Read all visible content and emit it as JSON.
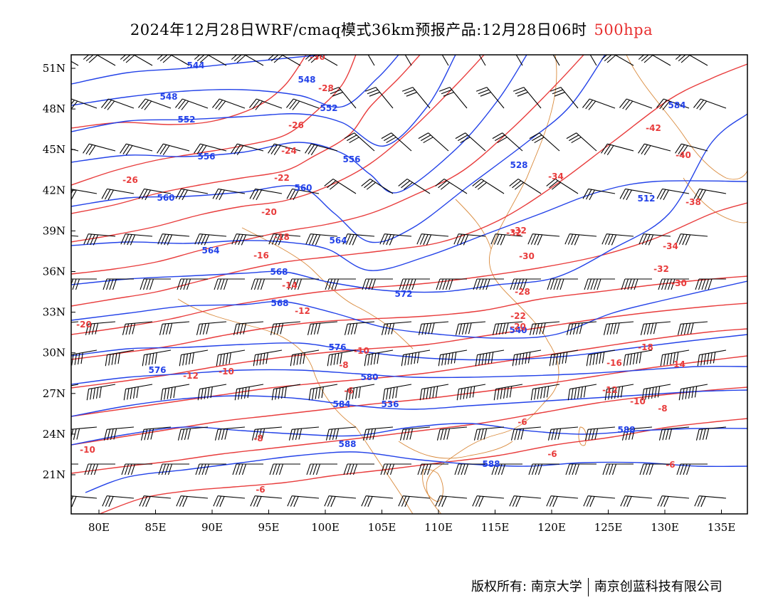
{
  "title": {
    "main": "2024年12月28日WRF/cmaq模式36km预报产品:12月28日06时",
    "level": "500hpa"
  },
  "axes": {
    "lon_ticks": [
      "80E",
      "85E",
      "90E",
      "95E",
      "100E",
      "105E",
      "110E",
      "115E",
      "120E",
      "125E",
      "130E",
      "135E"
    ],
    "lat_ticks": [
      "51N",
      "48N",
      "45N",
      "42N",
      "39N",
      "36N",
      "33N",
      "30N",
      "27N",
      "24N",
      "21N"
    ]
  },
  "colors": {
    "geopotential": "#2342e8",
    "temperature": "#e83c3c",
    "coastline": "#d98a3c",
    "wind": "#000000"
  },
  "height_labels": [
    "544",
    "548",
    "548",
    "552",
    "552",
    "556",
    "556",
    "560",
    "560",
    "564",
    "564",
    "568",
    "568",
    "572",
    "576",
    "576",
    "580",
    "584",
    "588",
    "588",
    "540",
    "536",
    "528",
    "512",
    "584",
    "588"
  ],
  "temp_labels": [
    "-30",
    "-28",
    "-26",
    "-24",
    "-22",
    "-20",
    "-18",
    "-16",
    "-14",
    "-12",
    "-10",
    "-8",
    "-6",
    "-6",
    "-32",
    "-34",
    "-30",
    "-32",
    "-34",
    "-30",
    "-28",
    "-22",
    "-20",
    "-18",
    "-16",
    "-14",
    "-12",
    "-10",
    "-8",
    "-6",
    "-42",
    "-40",
    "-38",
    "-20",
    "-10",
    "-12",
    "-8",
    "-6",
    "-6",
    "-10",
    "-26",
    "-32"
  ],
  "footer": {
    "copyright": "版权所有: 南京大学",
    "company": "南京创蓝科技有限公司"
  }
}
